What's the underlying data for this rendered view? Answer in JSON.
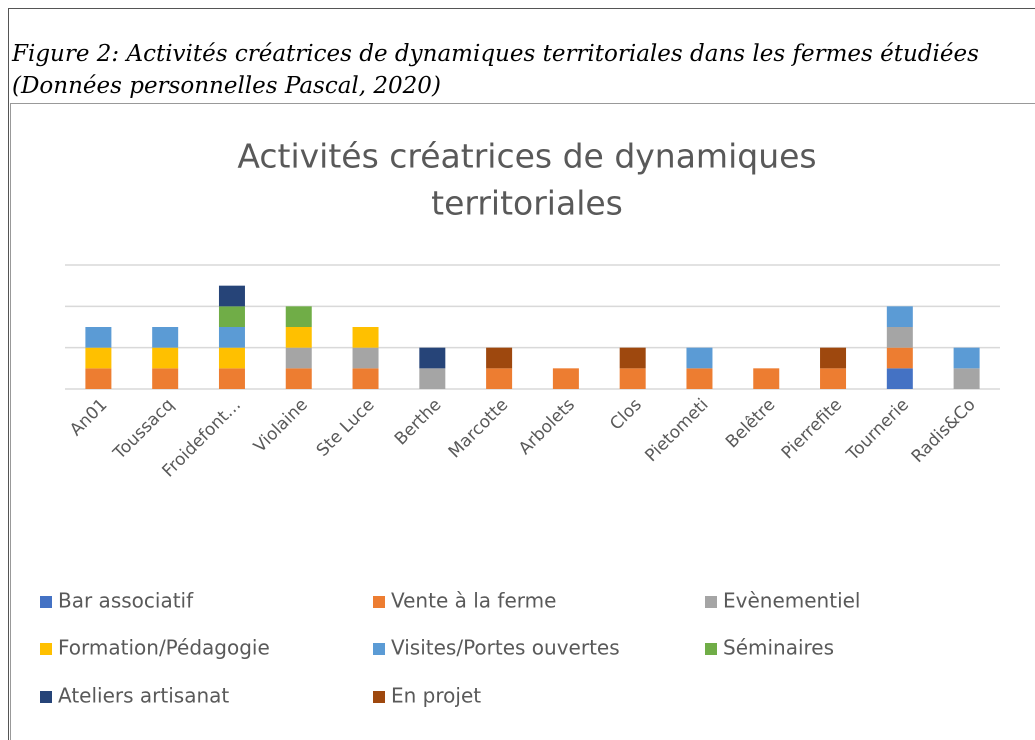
{
  "figure_caption": [
    "Figure 2: Activités créatrices de dynamiques territoriales dans les fermes étudiées",
    "(Données personnelles Pascal, 2020)"
  ],
  "chart_data": {
    "type": "stacked_bar",
    "title": [
      "Activités créatrices de dynamiques",
      "territoriales"
    ],
    "categories": [
      "An01",
      "Toussacq",
      "Froidefont…",
      "Violaine",
      "Ste Luce",
      "Berthe",
      "Marcotte",
      "Arbolets",
      "Clos",
      "Pietometi",
      "Belêtre",
      "Pierrefite",
      "Tournerie",
      "Radis&Co"
    ],
    "series": [
      {
        "name": "Bar associatif",
        "color": "#4472c4",
        "values": [
          0,
          0,
          0,
          0,
          0,
          0,
          0,
          0,
          0,
          0,
          0,
          0,
          1,
          0
        ]
      },
      {
        "name": "Vente à la ferme",
        "color": "#ed7d31",
        "values": [
          1,
          1,
          1,
          1,
          1,
          0,
          1,
          1,
          1,
          1,
          1,
          1,
          1,
          0
        ]
      },
      {
        "name": "Evènementiel",
        "color": "#a5a5a5",
        "values": [
          0,
          0,
          0,
          1,
          1,
          1,
          0,
          0,
          0,
          0,
          0,
          0,
          1,
          1
        ]
      },
      {
        "name": "Formation/Pédagogie",
        "color": "#ffc000",
        "values": [
          1,
          1,
          1,
          1,
          1,
          0,
          0,
          0,
          0,
          0,
          0,
          0,
          0,
          0
        ]
      },
      {
        "name": "Visites/Portes ouvertes",
        "color": "#5b9bd5",
        "values": [
          1,
          1,
          1,
          0,
          0,
          0,
          0,
          0,
          0,
          1,
          0,
          0,
          1,
          1
        ]
      },
      {
        "name": "Séminaires",
        "color": "#70ad47",
        "values": [
          0,
          0,
          1,
          1,
          0,
          0,
          0,
          0,
          0,
          0,
          0,
          0,
          0,
          0
        ]
      },
      {
        "name": "Ateliers artisanat",
        "color": "#264478",
        "values": [
          0,
          0,
          1,
          0,
          0,
          1,
          0,
          0,
          0,
          0,
          0,
          0,
          0,
          0
        ]
      },
      {
        "name": "En projet",
        "color": "#9e480e",
        "values": [
          0,
          0,
          0,
          0,
          0,
          0,
          1,
          0,
          1,
          0,
          0,
          1,
          0,
          0
        ]
      }
    ],
    "ylim": [
      0,
      6
    ],
    "yticks": [
      0,
      2,
      4,
      6
    ],
    "grid": true
  }
}
